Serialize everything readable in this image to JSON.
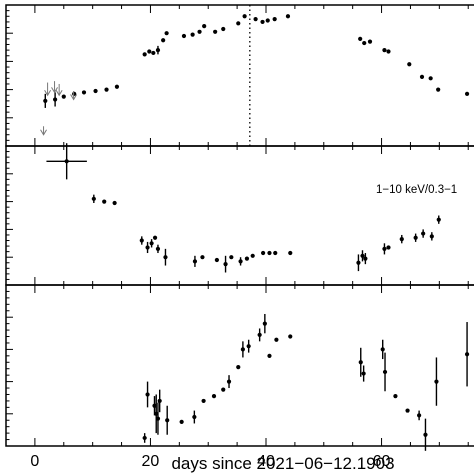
{
  "chart_data": {
    "type": "scatter",
    "xlabel": "days since 2021−06−12.1903",
    "xlim": [
      -5,
      76
    ],
    "xticks": [
      0,
      20,
      40,
      60
    ],
    "vline_x": 37.2,
    "panels": [
      {
        "ylim": [
          0,
          1
        ],
        "points": [
          {
            "x": 1.8,
            "y": 0.32,
            "ey": 0.05
          },
          {
            "x": 3.5,
            "y": 0.33,
            "ey": 0.05
          },
          {
            "x": 5.0,
            "y": 0.35,
            "ey": 0.0
          },
          {
            "x": 6.8,
            "y": 0.37,
            "ey": 0.0
          },
          {
            "x": 8.5,
            "y": 0.38,
            "ey": 0.0
          },
          {
            "x": 10.5,
            "y": 0.39,
            "ey": 0.0
          },
          {
            "x": 12.4,
            "y": 0.4,
            "ey": 0.0
          },
          {
            "x": 14.2,
            "y": 0.42,
            "ey": 0.0
          },
          {
            "x": 19.0,
            "y": 0.65,
            "ey": 0.0
          },
          {
            "x": 19.8,
            "y": 0.67,
            "ey": 0.0
          },
          {
            "x": 20.5,
            "y": 0.66,
            "ey": 0.0
          },
          {
            "x": 21.3,
            "y": 0.68,
            "ey": 0.03
          },
          {
            "x": 22.2,
            "y": 0.75,
            "ey": 0.0
          },
          {
            "x": 22.8,
            "y": 0.8,
            "ey": 0.0
          },
          {
            "x": 25.8,
            "y": 0.78,
            "ey": 0.0
          },
          {
            "x": 27.3,
            "y": 0.79,
            "ey": 0.0
          },
          {
            "x": 28.5,
            "y": 0.81,
            "ey": 0.0
          },
          {
            "x": 29.3,
            "y": 0.85,
            "ey": 0.0
          },
          {
            "x": 31.2,
            "y": 0.81,
            "ey": 0.0
          },
          {
            "x": 32.6,
            "y": 0.83,
            "ey": 0.0
          },
          {
            "x": 35.2,
            "y": 0.87,
            "ey": 0.0
          },
          {
            "x": 36.3,
            "y": 0.92,
            "ey": 0.0
          },
          {
            "x": 38.2,
            "y": 0.9,
            "ey": 0.0
          },
          {
            "x": 39.4,
            "y": 0.88,
            "ey": 0.0
          },
          {
            "x": 40.3,
            "y": 0.89,
            "ey": 0.0
          },
          {
            "x": 41.5,
            "y": 0.9,
            "ey": 0.0
          },
          {
            "x": 43.8,
            "y": 0.92,
            "ey": 0.0
          },
          {
            "x": 56.3,
            "y": 0.76,
            "ey": 0.0
          },
          {
            "x": 57.0,
            "y": 0.73,
            "ey": 0.0
          },
          {
            "x": 58.0,
            "y": 0.74,
            "ey": 0.0
          },
          {
            "x": 60.5,
            "y": 0.68,
            "ey": 0.0
          },
          {
            "x": 61.2,
            "y": 0.67,
            "ey": 0.0
          },
          {
            "x": 64.8,
            "y": 0.58,
            "ey": 0.0
          },
          {
            "x": 67.0,
            "y": 0.49,
            "ey": 0.0
          },
          {
            "x": 68.5,
            "y": 0.48,
            "ey": 0.0
          },
          {
            "x": 69.8,
            "y": 0.4,
            "ey": 0.0
          },
          {
            "x": 74.8,
            "y": 0.37,
            "ey": 0.0
          }
        ],
        "upper_limits": [
          {
            "x": 1.5,
            "y": 0.08,
            "dy": 0.06
          },
          {
            "x": 2.2,
            "y": 0.36,
            "dy": 0.09
          },
          {
            "x": 3.4,
            "y": 0.38,
            "dy": 0.08
          },
          {
            "x": 4.2,
            "y": 0.36,
            "dy": 0.08
          },
          {
            "x": 6.7,
            "y": 0.33,
            "dy": 0.06
          }
        ]
      },
      {
        "annotation": "1−10 keV/0.3−1",
        "ylim": [
          0,
          1
        ],
        "points": [
          {
            "x": 5.5,
            "y": 0.89,
            "ey": 0.13,
            "ex": 3.5
          },
          {
            "x": 10.2,
            "y": 0.62,
            "ey": 0.03
          },
          {
            "x": 12.0,
            "y": 0.6,
            "ey": 0.0
          },
          {
            "x": 13.8,
            "y": 0.59,
            "ey": 0.0
          },
          {
            "x": 18.5,
            "y": 0.32,
            "ey": 0.03
          },
          {
            "x": 19.5,
            "y": 0.27,
            "ey": 0.04
          },
          {
            "x": 20.2,
            "y": 0.3,
            "ey": 0.03
          },
          {
            "x": 20.8,
            "y": 0.34,
            "ey": 0.0
          },
          {
            "x": 21.3,
            "y": 0.26,
            "ey": 0.03
          },
          {
            "x": 22.6,
            "y": 0.2,
            "ey": 0.06
          },
          {
            "x": 27.7,
            "y": 0.17,
            "ey": 0.04
          },
          {
            "x": 29.0,
            "y": 0.2,
            "ey": 0.0
          },
          {
            "x": 31.5,
            "y": 0.18,
            "ey": 0.0
          },
          {
            "x": 33.0,
            "y": 0.15,
            "ey": 0.06
          },
          {
            "x": 34.0,
            "y": 0.2,
            "ey": 0.0
          },
          {
            "x": 35.6,
            "y": 0.17,
            "ey": 0.03
          },
          {
            "x": 36.7,
            "y": 0.19,
            "ey": 0.0
          },
          {
            "x": 37.7,
            "y": 0.21,
            "ey": 0.0
          },
          {
            "x": 39.5,
            "y": 0.23,
            "ey": 0.0
          },
          {
            "x": 40.6,
            "y": 0.23,
            "ey": 0.0
          },
          {
            "x": 41.6,
            "y": 0.23,
            "ey": 0.0
          },
          {
            "x": 44.2,
            "y": 0.23,
            "ey": 0.0
          },
          {
            "x": 56.0,
            "y": 0.16,
            "ey": 0.06
          },
          {
            "x": 56.7,
            "y": 0.21,
            "ey": 0.04
          },
          {
            "x": 57.2,
            "y": 0.19,
            "ey": 0.04
          },
          {
            "x": 60.5,
            "y": 0.26,
            "ey": 0.04
          },
          {
            "x": 61.2,
            "y": 0.27,
            "ey": 0.0
          },
          {
            "x": 63.5,
            "y": 0.33,
            "ey": 0.03
          },
          {
            "x": 65.9,
            "y": 0.34,
            "ey": 0.03
          },
          {
            "x": 67.2,
            "y": 0.37,
            "ey": 0.03
          },
          {
            "x": 68.7,
            "y": 0.35,
            "ey": 0.03
          },
          {
            "x": 69.9,
            "y": 0.47,
            "ey": 0.03
          }
        ]
      },
      {
        "ylim": [
          0,
          1
        ],
        "points": [
          {
            "x": 19.0,
            "y": 0.05,
            "ey": 0.03
          },
          {
            "x": 19.5,
            "y": 0.32,
            "ey": 0.08
          },
          {
            "x": 20.7,
            "y": 0.25,
            "ey": 0.06
          },
          {
            "x": 21.0,
            "y": 0.2,
            "ey": 0.12
          },
          {
            "x": 21.3,
            "y": 0.17,
            "ey": 0.1
          },
          {
            "x": 21.6,
            "y": 0.28,
            "ey": 0.07
          },
          {
            "x": 22.9,
            "y": 0.16,
            "ey": 0.09
          },
          {
            "x": 25.4,
            "y": 0.15,
            "ey": 0.0
          },
          {
            "x": 27.6,
            "y": 0.18,
            "ey": 0.04
          },
          {
            "x": 29.2,
            "y": 0.28,
            "ey": 0.0
          },
          {
            "x": 31.0,
            "y": 0.31,
            "ey": 0.0
          },
          {
            "x": 32.6,
            "y": 0.35,
            "ey": 0.0
          },
          {
            "x": 33.6,
            "y": 0.4,
            "ey": 0.04
          },
          {
            "x": 35.2,
            "y": 0.49,
            "ey": 0.0
          },
          {
            "x": 36.0,
            "y": 0.6,
            "ey": 0.05
          },
          {
            "x": 37.0,
            "y": 0.62,
            "ey": 0.04
          },
          {
            "x": 38.9,
            "y": 0.69,
            "ey": 0.04
          },
          {
            "x": 39.8,
            "y": 0.76,
            "ey": 0.06
          },
          {
            "x": 40.6,
            "y": 0.56,
            "ey": 0.0
          },
          {
            "x": 41.8,
            "y": 0.66,
            "ey": 0.0
          },
          {
            "x": 44.2,
            "y": 0.68,
            "ey": 0.0
          },
          {
            "x": 56.4,
            "y": 0.52,
            "ey": 0.09
          },
          {
            "x": 56.9,
            "y": 0.45,
            "ey": 0.05
          },
          {
            "x": 60.2,
            "y": 0.6,
            "ey": 0.06
          },
          {
            "x": 60.6,
            "y": 0.46,
            "ey": 0.12
          },
          {
            "x": 62.4,
            "y": 0.31,
            "ey": 0.0
          },
          {
            "x": 64.5,
            "y": 0.22,
            "ey": 0.0
          },
          {
            "x": 66.5,
            "y": 0.19,
            "ey": 0.03
          },
          {
            "x": 67.6,
            "y": 0.07,
            "ey": 0.1
          },
          {
            "x": 69.5,
            "y": 0.4,
            "ey": 0.15
          },
          {
            "x": 74.8,
            "y": 0.57,
            "ey": 0.2
          }
        ]
      }
    ]
  }
}
